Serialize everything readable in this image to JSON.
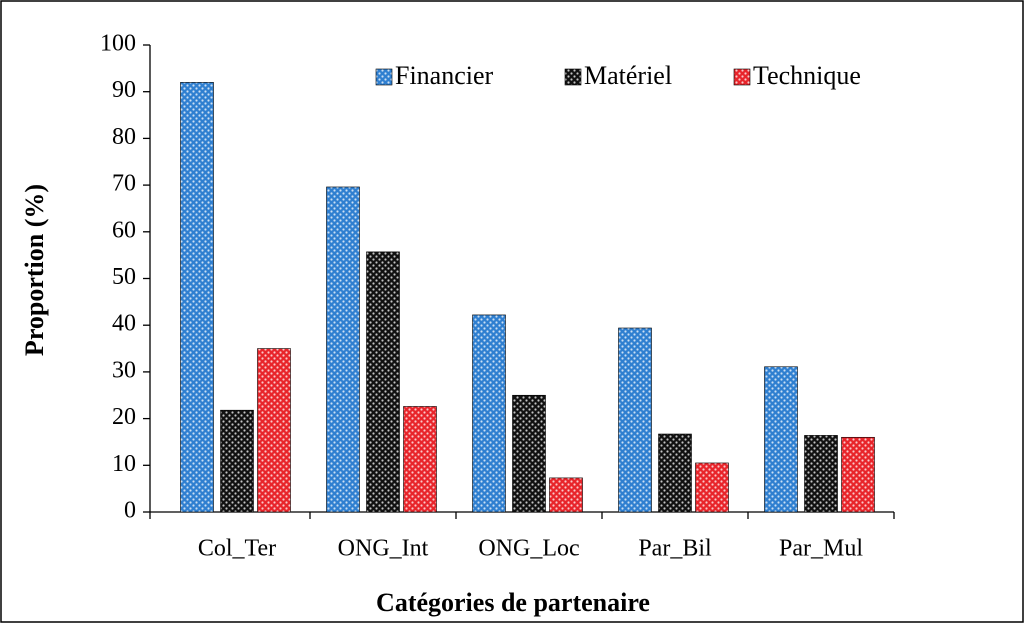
{
  "chart_data": {
    "type": "bar",
    "xlabel": "Catégories de partenaire",
    "ylabel": "Proportion (%)",
    "categories": [
      "Col_Ter",
      "ONG_Int",
      "ONG_Loc",
      "Par_Bil",
      "Par_Mul"
    ],
    "series": [
      {
        "name": "Financier",
        "color": "#2f7fd0",
        "values": [
          92,
          69.6,
          42.2,
          39.4,
          31.1
        ]
      },
      {
        "name": "Matériel",
        "color": "#111111",
        "values": [
          21.8,
          55.7,
          25,
          16.7,
          16.4
        ]
      },
      {
        "name": "Technique",
        "color": "#e8242a",
        "values": [
          35,
          22.6,
          7.3,
          10.5,
          16.0
        ]
      }
    ],
    "ylim": [
      0,
      100
    ],
    "yticks": [
      0,
      10,
      20,
      30,
      40,
      50,
      60,
      70,
      80,
      90,
      100
    ]
  }
}
